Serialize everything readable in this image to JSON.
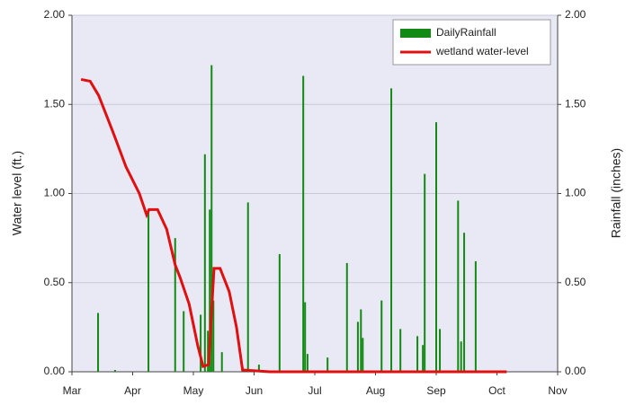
{
  "chart_data": {
    "type": "bar_line",
    "ylabel": "Water level (ft.)",
    "y2label": "Rainfall (inches)",
    "xlim": [
      0,
      8
    ],
    "xticks": [
      {
        "value": 0,
        "label": "Mar"
      },
      {
        "value": 1,
        "label": "Apr"
      },
      {
        "value": 2,
        "label": "May"
      },
      {
        "value": 3,
        "label": "Jun"
      },
      {
        "value": 4,
        "label": "Jul"
      },
      {
        "value": 5,
        "label": "Aug"
      },
      {
        "value": 6,
        "label": "Sep"
      },
      {
        "value": 7,
        "label": "Oct"
      },
      {
        "value": 8,
        "label": "Nov"
      }
    ],
    "ylim": [
      0,
      2
    ],
    "yticks": [
      {
        "value": 0,
        "label": "0.00"
      },
      {
        "value": 0.5,
        "label": "0.50"
      },
      {
        "value": 1,
        "label": "1.00"
      },
      {
        "value": 1.5,
        "label": "1.50"
      },
      {
        "value": 2,
        "label": "2.00"
      }
    ],
    "y2lim": [
      0,
      2
    ],
    "y2ticks": [
      {
        "value": 0,
        "label": "0.00"
      },
      {
        "value": 0.5,
        "label": "0.50"
      },
      {
        "value": 1,
        "label": "1.00"
      },
      {
        "value": 1.5,
        "label": "1.50"
      },
      {
        "value": 2,
        "label": "2.00"
      }
    ],
    "grid": true,
    "legend": "upper right",
    "series": [
      {
        "name": "DailyRainfall",
        "kind": "bar",
        "axis": "y2",
        "color": "#138a13",
        "x": [
          0.43,
          0.71,
          1.26,
          1.7,
          1.84,
          2.12,
          2.19,
          2.24,
          2.27,
          2.3,
          2.33,
          2.47,
          2.9,
          3.08,
          3.42,
          3.81,
          3.84,
          3.88,
          4.21,
          4.53,
          4.71,
          4.76,
          4.79,
          5.1,
          5.26,
          5.41,
          5.69,
          5.78,
          5.81,
          6.0,
          6.06,
          6.36,
          6.41,
          6.46,
          6.65
        ],
        "values": [
          0.33,
          0.01,
          0.9,
          0.75,
          0.34,
          0.32,
          1.22,
          0.23,
          0.91,
          1.72,
          0.4,
          0.11,
          0.95,
          0.04,
          0.66,
          1.66,
          0.39,
          0.1,
          0.08,
          0.61,
          0.28,
          0.35,
          0.19,
          0.4,
          1.59,
          0.24,
          0.2,
          0.15,
          1.11,
          1.4,
          0.24,
          0.96,
          0.17,
          0.78,
          0.62
        ]
      },
      {
        "name": "wetland water-level",
        "kind": "line",
        "color": "#e01010",
        "x": [
          0.15,
          0.3,
          0.44,
          0.67,
          0.89,
          1.11,
          1.23,
          1.27,
          1.41,
          1.56,
          1.7,
          1.78,
          1.93,
          2.07,
          2.16,
          2.25,
          2.34,
          2.44,
          2.59,
          2.71,
          2.81,
          3.26,
          7.16
        ],
        "values": [
          1.64,
          1.63,
          1.55,
          1.35,
          1.15,
          1.0,
          0.88,
          0.91,
          0.91,
          0.8,
          0.6,
          0.53,
          0.38,
          0.15,
          0.03,
          0.04,
          0.58,
          0.58,
          0.45,
          0.25,
          0.01,
          0,
          0
        ]
      }
    ]
  }
}
